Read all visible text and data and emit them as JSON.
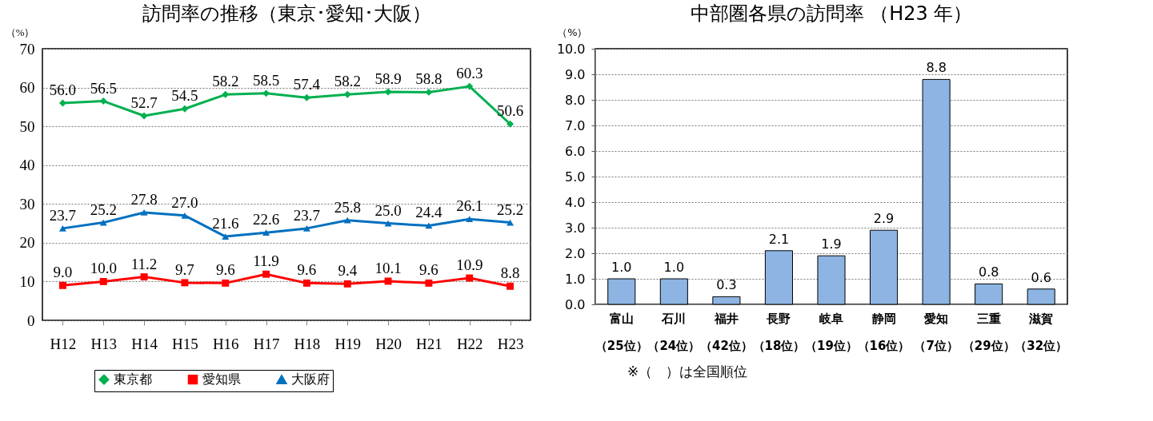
{
  "chart_data": [
    {
      "type": "line",
      "title": "訪問率の推移（東京･愛知･大阪）",
      "ylabel": "（%）",
      "categories": [
        "H12",
        "H13",
        "H14",
        "H15",
        "H16",
        "H17",
        "H18",
        "H19",
        "H20",
        "H21",
        "H22",
        "H23"
      ],
      "series": [
        {
          "name": "東京都",
          "color": "#00b050",
          "marker": "diamond",
          "values": [
            56.0,
            56.5,
            52.7,
            54.5,
            58.2,
            58.5,
            57.4,
            58.2,
            58.9,
            58.8,
            60.3,
            50.6
          ],
          "value_labels": [
            "56.0",
            "56.5",
            "52.7",
            "54.5",
            "58.2",
            "58.5",
            "57.4",
            "58.2",
            "58.9",
            "58.8",
            "60.3",
            "50.6"
          ]
        },
        {
          "name": "愛知県",
          "color": "#ff0000",
          "marker": "square",
          "values": [
            9.0,
            10.0,
            11.2,
            9.7,
            9.6,
            11.9,
            9.6,
            9.4,
            10.1,
            9.6,
            10.9,
            8.8
          ],
          "value_labels": [
            "9.0",
            "10.0",
            "11.2",
            "9.7",
            "9.6",
            "11.9",
            "9.6",
            "9.4",
            "10.1",
            "9.6",
            "10.9",
            "8.8"
          ]
        },
        {
          "name": "大阪府",
          "color": "#0070c0",
          "marker": "triangle",
          "values": [
            23.7,
            25.2,
            27.8,
            27.0,
            21.6,
            22.6,
            23.7,
            25.8,
            25.0,
            24.4,
            26.1,
            25.2
          ],
          "value_labels": [
            "23.7",
            "25.2",
            "27.8",
            "27.0",
            "21.6",
            "22.6",
            "23.7",
            "25.8",
            "25.0",
            "24.4",
            "26.1",
            "25.2"
          ]
        }
      ],
      "ylim": [
        0,
        70
      ],
      "yticks": [
        0,
        10,
        20,
        30,
        40,
        50,
        60,
        70
      ],
      "grid": "y",
      "legend": "bottom",
      "line_style": "solid"
    },
    {
      "type": "bar",
      "title": "中部圏各県の訪問率 （H23 年）",
      "ylabel": "（%）",
      "categories": [
        "富山（25位）",
        "石川（24位）",
        "福井（42位）",
        "長野（18位）",
        "岐阜（19位）",
        "静岡（16位）",
        "愛知（7位）",
        "三重（29位）",
        "滋賀（32位）"
      ],
      "values": [
        1.0,
        1.0,
        0.3,
        2.1,
        1.9,
        2.9,
        8.8,
        0.8,
        0.6
      ],
      "color": "#8db4e2",
      "value_labels": [
        "1.0",
        "1.0",
        "0.3",
        "2.1",
        "1.9",
        "2.9",
        "8.8",
        "0.8",
        "0.6"
      ],
      "ylim": [
        0,
        10
      ],
      "yticks": [
        {
          "value": 0,
          "label": "0.0"
        },
        {
          "value": 1,
          "label": "1.0"
        },
        {
          "value": 2,
          "label": "2.0"
        },
        {
          "value": 3,
          "label": "3.0"
        },
        {
          "value": 4,
          "label": "4.0"
        },
        {
          "value": 5,
          "label": "5.0"
        },
        {
          "value": 6,
          "label": "6.0"
        },
        {
          "value": 7,
          "label": "7.0"
        },
        {
          "value": 8,
          "label": "8.0"
        },
        {
          "value": 9,
          "label": "9.0"
        },
        {
          "value": 10,
          "label": "10.0"
        }
      ],
      "grid": "y",
      "annotations": [
        "※（　）は全国順位"
      ]
    }
  ]
}
